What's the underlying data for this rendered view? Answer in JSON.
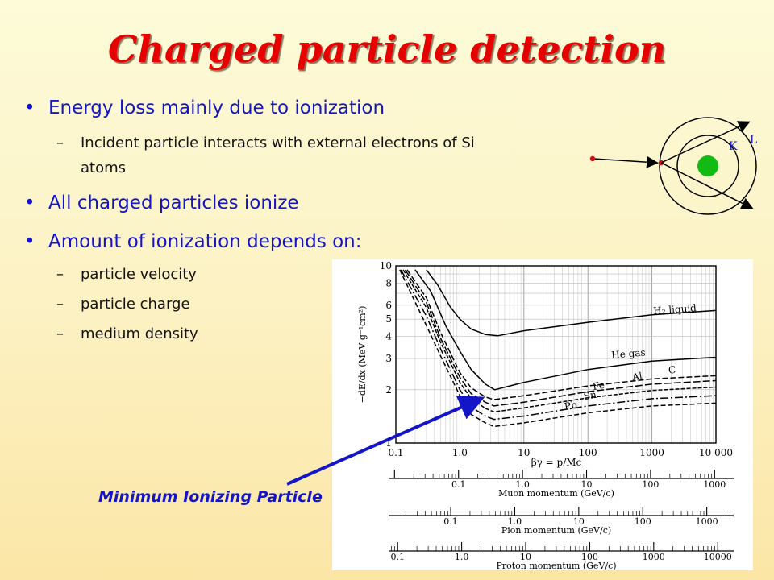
{
  "title": "Charged particle detection",
  "bullets": [
    "Energy loss mainly due to ionization",
    "All charged particles ionize",
    "Amount of ionization depends on:"
  ],
  "sub_bullets_1": [
    "Incident particle interacts with external electrons of Si",
    "atoms"
  ],
  "sub_bullets_3": [
    "particle velocity",
    "particle charge",
    "medium density"
  ],
  "atom": {
    "label_k": "K",
    "label_l": "L"
  },
  "annotation": "Minimum Ionizing Particle",
  "colors": {
    "title": "#e60000",
    "bullets": "#1515c8",
    "nucleus": "#11bb11",
    "electron": "#cc1111"
  },
  "chart_data": {
    "type": "line",
    "ylabel": "−dE/dx (MeV g⁻¹cm²)",
    "xlabel": "βγ = p/Mc",
    "x_scale": "log",
    "y_scale": "log",
    "xlim": [
      0.1,
      10000
    ],
    "ylim": [
      1,
      10
    ],
    "x_ticks": [
      "0.1",
      "1.0",
      "10",
      "100",
      "1000",
      "10 000"
    ],
    "y_ticks": [
      "1",
      "2",
      "3",
      "4",
      "5",
      "6",
      "8",
      "10"
    ],
    "series": [
      {
        "name": "H2 liquid",
        "x": [
          0.3,
          0.45,
          0.7,
          1.0,
          1.5,
          2.5,
          3.9,
          10,
          100,
          1000,
          10000
        ],
        "y": [
          9.5,
          7.8,
          5.9,
          5.0,
          4.4,
          4.1,
          4.03,
          4.3,
          4.8,
          5.3,
          5.6
        ]
      },
      {
        "name": "He gas",
        "x": [
          0.2,
          0.35,
          0.6,
          1.0,
          1.5,
          2.5,
          3.5,
          10,
          100,
          1000,
          10000
        ],
        "y": [
          9.5,
          7.2,
          4.6,
          3.3,
          2.6,
          2.15,
          2.0,
          2.2,
          2.6,
          2.9,
          3.05
        ]
      },
      {
        "name": "C",
        "x": [
          0.15,
          0.3,
          0.5,
          1.0,
          1.5,
          2.5,
          3.4,
          10,
          100,
          1000,
          10000
        ],
        "y": [
          9.5,
          6.6,
          4.2,
          2.5,
          2.05,
          1.82,
          1.76,
          1.85,
          2.1,
          2.3,
          2.4
        ]
      },
      {
        "name": "Al",
        "x": [
          0.14,
          0.3,
          0.5,
          1.0,
          1.5,
          2.5,
          3.4,
          10,
          100,
          1000,
          10000
        ],
        "y": [
          9.5,
          6.2,
          3.9,
          2.35,
          1.9,
          1.7,
          1.62,
          1.7,
          1.95,
          2.15,
          2.25
        ]
      },
      {
        "name": "Fe",
        "x": [
          0.13,
          0.3,
          0.5,
          1.0,
          1.5,
          2.5,
          3.4,
          10,
          100,
          1000,
          10000
        ],
        "y": [
          9.5,
          5.8,
          3.7,
          2.2,
          1.78,
          1.57,
          1.5,
          1.58,
          1.8,
          1.98,
          2.07
        ]
      },
      {
        "name": "Sn",
        "x": [
          0.12,
          0.3,
          0.5,
          1.0,
          1.5,
          2.5,
          3.4,
          10,
          100,
          1000,
          10000
        ],
        "y": [
          9.5,
          5.2,
          3.4,
          2.0,
          1.6,
          1.42,
          1.36,
          1.42,
          1.62,
          1.78,
          1.85
        ]
      },
      {
        "name": "Pb",
        "x": [
          0.115,
          0.3,
          0.5,
          1.0,
          1.5,
          2.5,
          3.4,
          10,
          100,
          1000,
          10000
        ],
        "y": [
          9.5,
          4.6,
          3.1,
          1.85,
          1.45,
          1.3,
          1.24,
          1.3,
          1.48,
          1.62,
          1.68
        ]
      }
    ],
    "momentum_scales": [
      {
        "label": "Muon momentum (GeV/c)",
        "ticks": [
          "0.1",
          "1.0",
          "10",
          "100",
          "1000"
        ]
      },
      {
        "label": "Pion momentum (GeV/c)",
        "ticks": [
          "0.1",
          "1.0",
          "10",
          "100",
          "1000"
        ]
      },
      {
        "label": "Proton momentum (GeV/c)",
        "ticks": [
          "0.1",
          "1.0",
          "10",
          "100",
          "1000",
          "10000"
        ]
      }
    ]
  }
}
